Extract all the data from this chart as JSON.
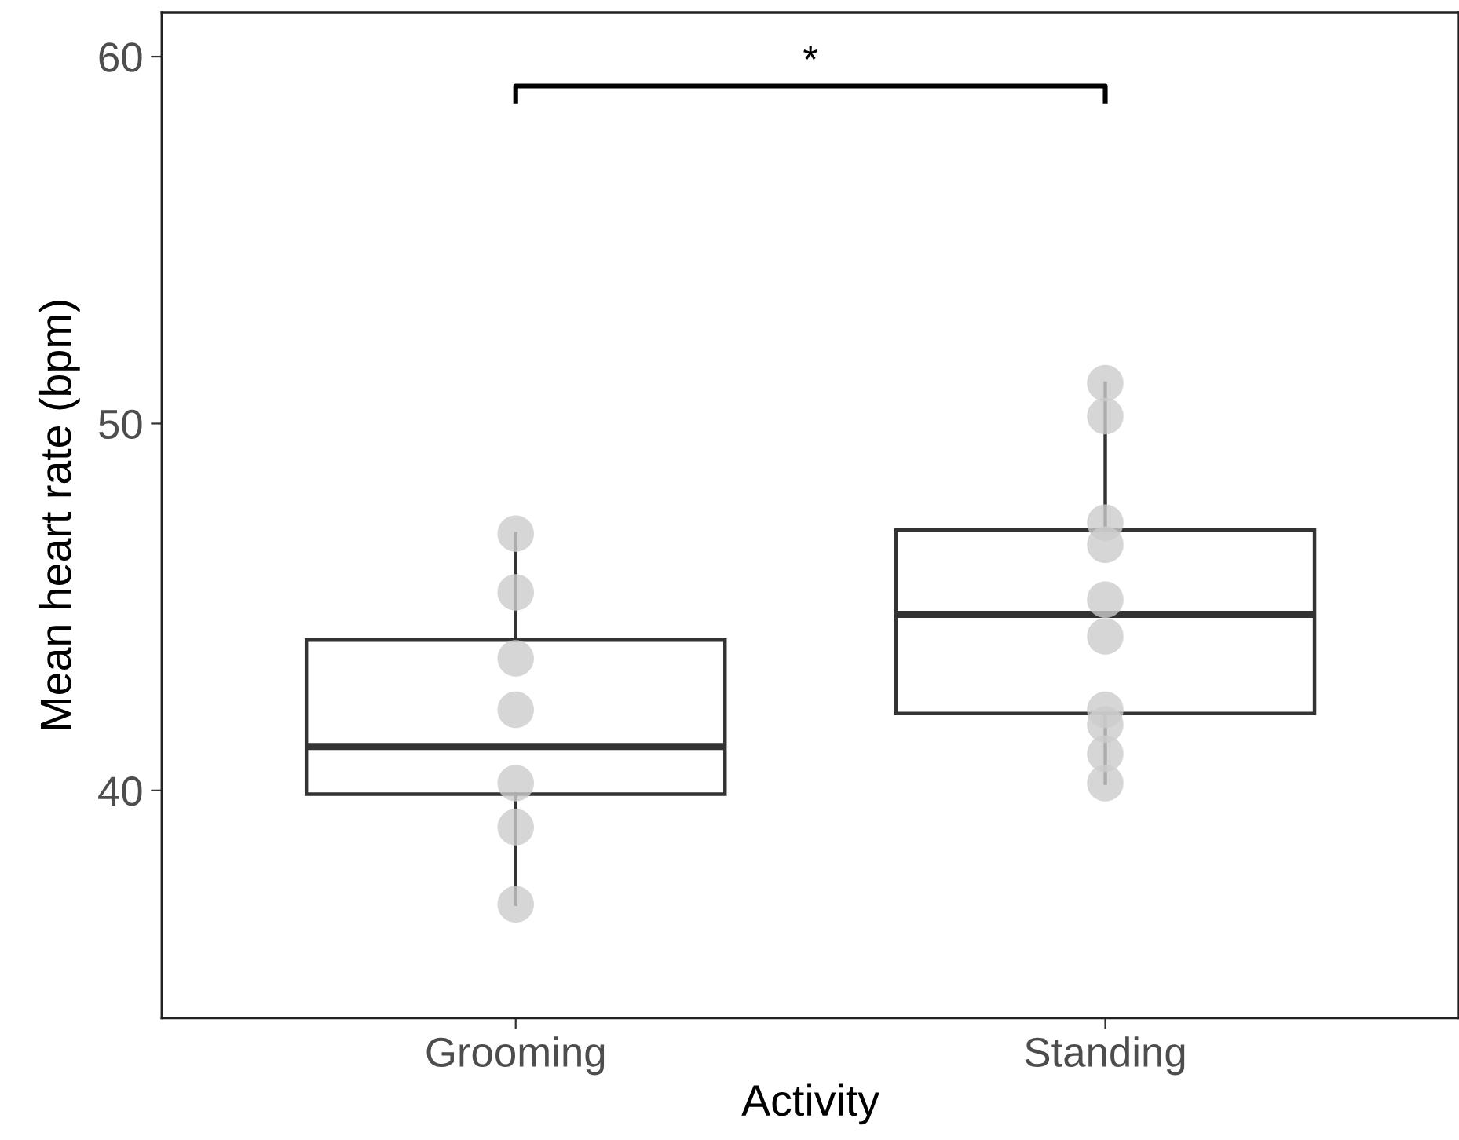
{
  "chart_data": {
    "type": "box",
    "xlabel": "Activity",
    "ylabel": "Mean heart rate (bpm)",
    "categories": [
      "Grooming",
      "Standing"
    ],
    "boxes": [
      {
        "low": 36.9,
        "q1": 39.9,
        "median": 41.2,
        "q3": 44.1,
        "high": 47.0
      },
      {
        "low": 40.2,
        "q1": 42.1,
        "median": 44.8,
        "q3": 47.1,
        "high": 51.1
      }
    ],
    "series": [
      {
        "type": "scatter",
        "color": "#cccccc",
        "x": [
          "Grooming",
          "Grooming",
          "Grooming",
          "Grooming",
          "Grooming",
          "Grooming",
          "Grooming"
        ],
        "values": [
          47.0,
          45.4,
          43.6,
          42.2,
          40.2,
          39.0,
          36.9
        ]
      },
      {
        "type": "scatter",
        "color": "#cccccc",
        "x": [
          "Standing",
          "Standing",
          "Standing",
          "Standing",
          "Standing",
          "Standing",
          "Standing",
          "Standing",
          "Standing",
          "Standing"
        ],
        "values": [
          51.1,
          50.2,
          47.3,
          46.7,
          45.2,
          44.2,
          42.2,
          41.8,
          41.0,
          40.2
        ]
      }
    ],
    "ylim": [
      33.8,
      61.2
    ],
    "yticks": [
      40,
      50,
      60
    ],
    "annotations": [
      "*"
    ],
    "grid": false,
    "legend": false,
    "marker": "circle"
  }
}
